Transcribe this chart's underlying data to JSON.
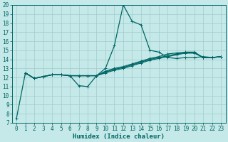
{
  "xlabel": "Humidex (Indice chaleur)",
  "background_color": "#c5e8e8",
  "grid_color": "#a0cccc",
  "line_color": "#006666",
  "xlim": [
    -0.5,
    23.5
  ],
  "ylim": [
    7,
    20
  ],
  "xticks": [
    0,
    1,
    2,
    3,
    4,
    5,
    6,
    7,
    8,
    9,
    10,
    11,
    12,
    13,
    14,
    15,
    16,
    17,
    18,
    19,
    20,
    21,
    22,
    23
  ],
  "yticks": [
    7,
    8,
    9,
    10,
    11,
    12,
    13,
    14,
    15,
    16,
    17,
    18,
    19,
    20
  ],
  "series1_x": [
    0,
    1,
    2,
    3,
    4,
    5,
    6,
    7,
    8,
    9,
    10,
    11,
    12,
    13,
    14,
    15,
    16,
    17,
    18,
    19,
    20,
    21,
    22,
    23
  ],
  "series1_y": [
    7.5,
    12.5,
    11.9,
    12.1,
    12.3,
    12.3,
    12.2,
    11.1,
    11.0,
    12.2,
    13.0,
    15.5,
    20.0,
    18.2,
    17.8,
    15.0,
    14.8,
    14.2,
    14.1,
    14.2,
    14.2,
    14.3,
    14.2,
    14.3
  ],
  "series2_x": [
    1,
    2,
    3,
    4,
    5,
    6,
    7,
    8,
    9,
    10,
    11,
    12,
    13,
    14,
    15,
    16,
    17,
    18,
    19,
    20,
    21,
    22,
    23
  ],
  "series2_y": [
    12.5,
    11.9,
    12.1,
    12.3,
    12.3,
    12.2,
    12.2,
    12.2,
    12.2,
    12.5,
    12.8,
    13.0,
    13.3,
    13.6,
    13.9,
    14.1,
    14.3,
    14.5,
    14.7,
    14.7,
    14.2,
    14.2,
    14.3
  ],
  "series3_x": [
    1,
    2,
    3,
    4,
    5,
    6,
    7,
    8,
    9,
    10,
    11,
    12,
    13,
    14,
    15,
    16,
    17,
    18,
    19,
    20,
    21,
    22,
    23
  ],
  "series3_y": [
    12.5,
    11.9,
    12.1,
    12.3,
    12.3,
    12.2,
    12.2,
    12.2,
    12.2,
    12.6,
    12.9,
    13.1,
    13.4,
    13.7,
    14.0,
    14.2,
    14.4,
    14.6,
    14.7,
    14.7,
    14.2,
    14.2,
    14.3
  ],
  "series4_x": [
    1,
    2,
    3,
    4,
    5,
    6,
    7,
    8,
    9,
    10,
    11,
    12,
    13,
    14,
    15,
    16,
    17,
    18,
    19,
    20,
    21,
    22,
    23
  ],
  "series4_y": [
    12.5,
    11.9,
    12.1,
    12.3,
    12.3,
    12.2,
    12.2,
    12.2,
    12.2,
    12.7,
    13.0,
    13.2,
    13.5,
    13.8,
    14.1,
    14.3,
    14.6,
    14.7,
    14.8,
    14.8,
    14.2,
    14.2,
    14.3
  ],
  "tick_fontsize": 5.5,
  "xlabel_fontsize": 6.5,
  "linewidth": 0.9,
  "markersize": 2.5
}
